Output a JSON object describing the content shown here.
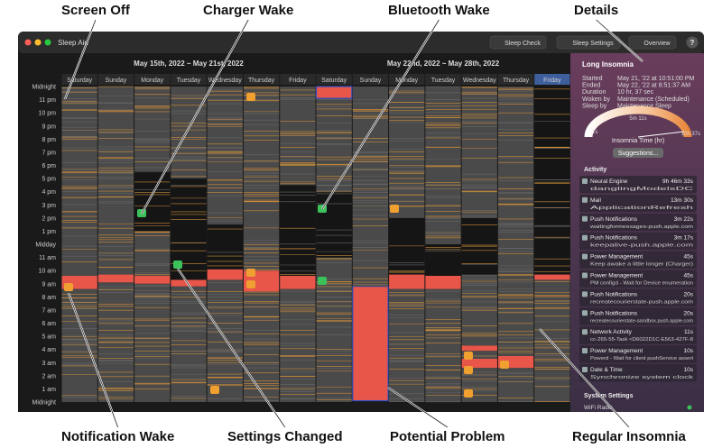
{
  "callouts": {
    "top": [
      "Screen Off",
      "Charger Wake",
      "Bluetooth Wake",
      "Details"
    ],
    "bottom": [
      "Notification Wake",
      "Settings Changed",
      "Potential Problem",
      "Regular Insomnia"
    ]
  },
  "window": {
    "title": "Sleep Aid",
    "toolbar": [
      "Sleep Check",
      "Sleep Settings",
      "Overview",
      "?"
    ]
  },
  "calendar": {
    "weeks": [
      "May 15th, 2022 ~ May 21st, 2022",
      "May 22nd, 2022 ~ May 28th, 2022"
    ],
    "days": [
      "Saturday",
      "Sunday",
      "Monday",
      "Tuesday",
      "Wednesday",
      "Thursday",
      "Friday",
      "Saturday",
      "Sunday",
      "Monday",
      "Tuesday",
      "Wednesday",
      "Thursday",
      "Friday"
    ],
    "hours": [
      "Midnight",
      "11 pm",
      "10 pm",
      "9 pm",
      "8 pm",
      "7 pm",
      "6 pm",
      "5 pm",
      "4 pm",
      "3 pm",
      "2 pm",
      "1 pm",
      "Midday",
      "11 am",
      "10 am",
      "9 am",
      "8 am",
      "7 am",
      "6 am",
      "5 am",
      "4 am",
      "3 am",
      "2 am",
      "1 am",
      "Midnight"
    ]
  },
  "details": {
    "title": "Long Insomnia",
    "fields": [
      {
        "label": "Started",
        "value": "May 21, '22 at 10:51:00 PM"
      },
      {
        "label": "Ended",
        "value": "May 22, '22 at 8:51:37 AM"
      },
      {
        "label": "Duration",
        "value": "10 hr, 37 sec"
      },
      {
        "label": "Woken by",
        "value": "Maintenance (Scheduled)"
      },
      {
        "label": "Sleep by",
        "value": "Maintenance Sleep"
      }
    ],
    "gauge": {
      "mid": "5m 11s",
      "min": "1s",
      "max": "10h 37s",
      "caption": "Insomnia Time (hr)"
    },
    "button": "Suggestions..."
  },
  "activity": {
    "title": "Activity",
    "items": [
      {
        "name": "Neural Engine",
        "detail": "danglingModelsDC",
        "time": "9h 46m 33s"
      },
      {
        "name": "Mail",
        "detail": "ApplicationRefresh",
        "time": "13m 30s"
      },
      {
        "name": "Push Notifications",
        "detail": "waitingformessages-push.apple.com",
        "time": "3m 22s"
      },
      {
        "name": "Push Notifications",
        "detail": "keepalive-push.apple.com",
        "time": "3m 17s"
      },
      {
        "name": "Power Management",
        "detail": "Keep awake a little longer (Charger)",
        "time": "45s"
      },
      {
        "name": "Power Management",
        "detail": "PM configd - Wait for Device enumeration",
        "time": "45s"
      },
      {
        "name": "Push Notifications",
        "detail": "recreatecourierstate-push.apple.com",
        "time": "20s"
      },
      {
        "name": "Push Notifications",
        "detail": "recreatecourierstate-sandbox.push.apple.com",
        "time": "20s"
      },
      {
        "name": "Network Activity",
        "detail": "cc-265-55-Task <D6022D1C-E563-427F-8",
        "time": "11s"
      },
      {
        "name": "Power Management",
        "detail": "Powerd - Wait for client pushService assert",
        "time": "10s"
      },
      {
        "name": "Date & Time",
        "detail": "Synchronize system clock",
        "time": "10s"
      }
    ]
  },
  "system_settings": {
    "title": "System Settings",
    "items": [
      "WiFi Radio"
    ]
  }
}
